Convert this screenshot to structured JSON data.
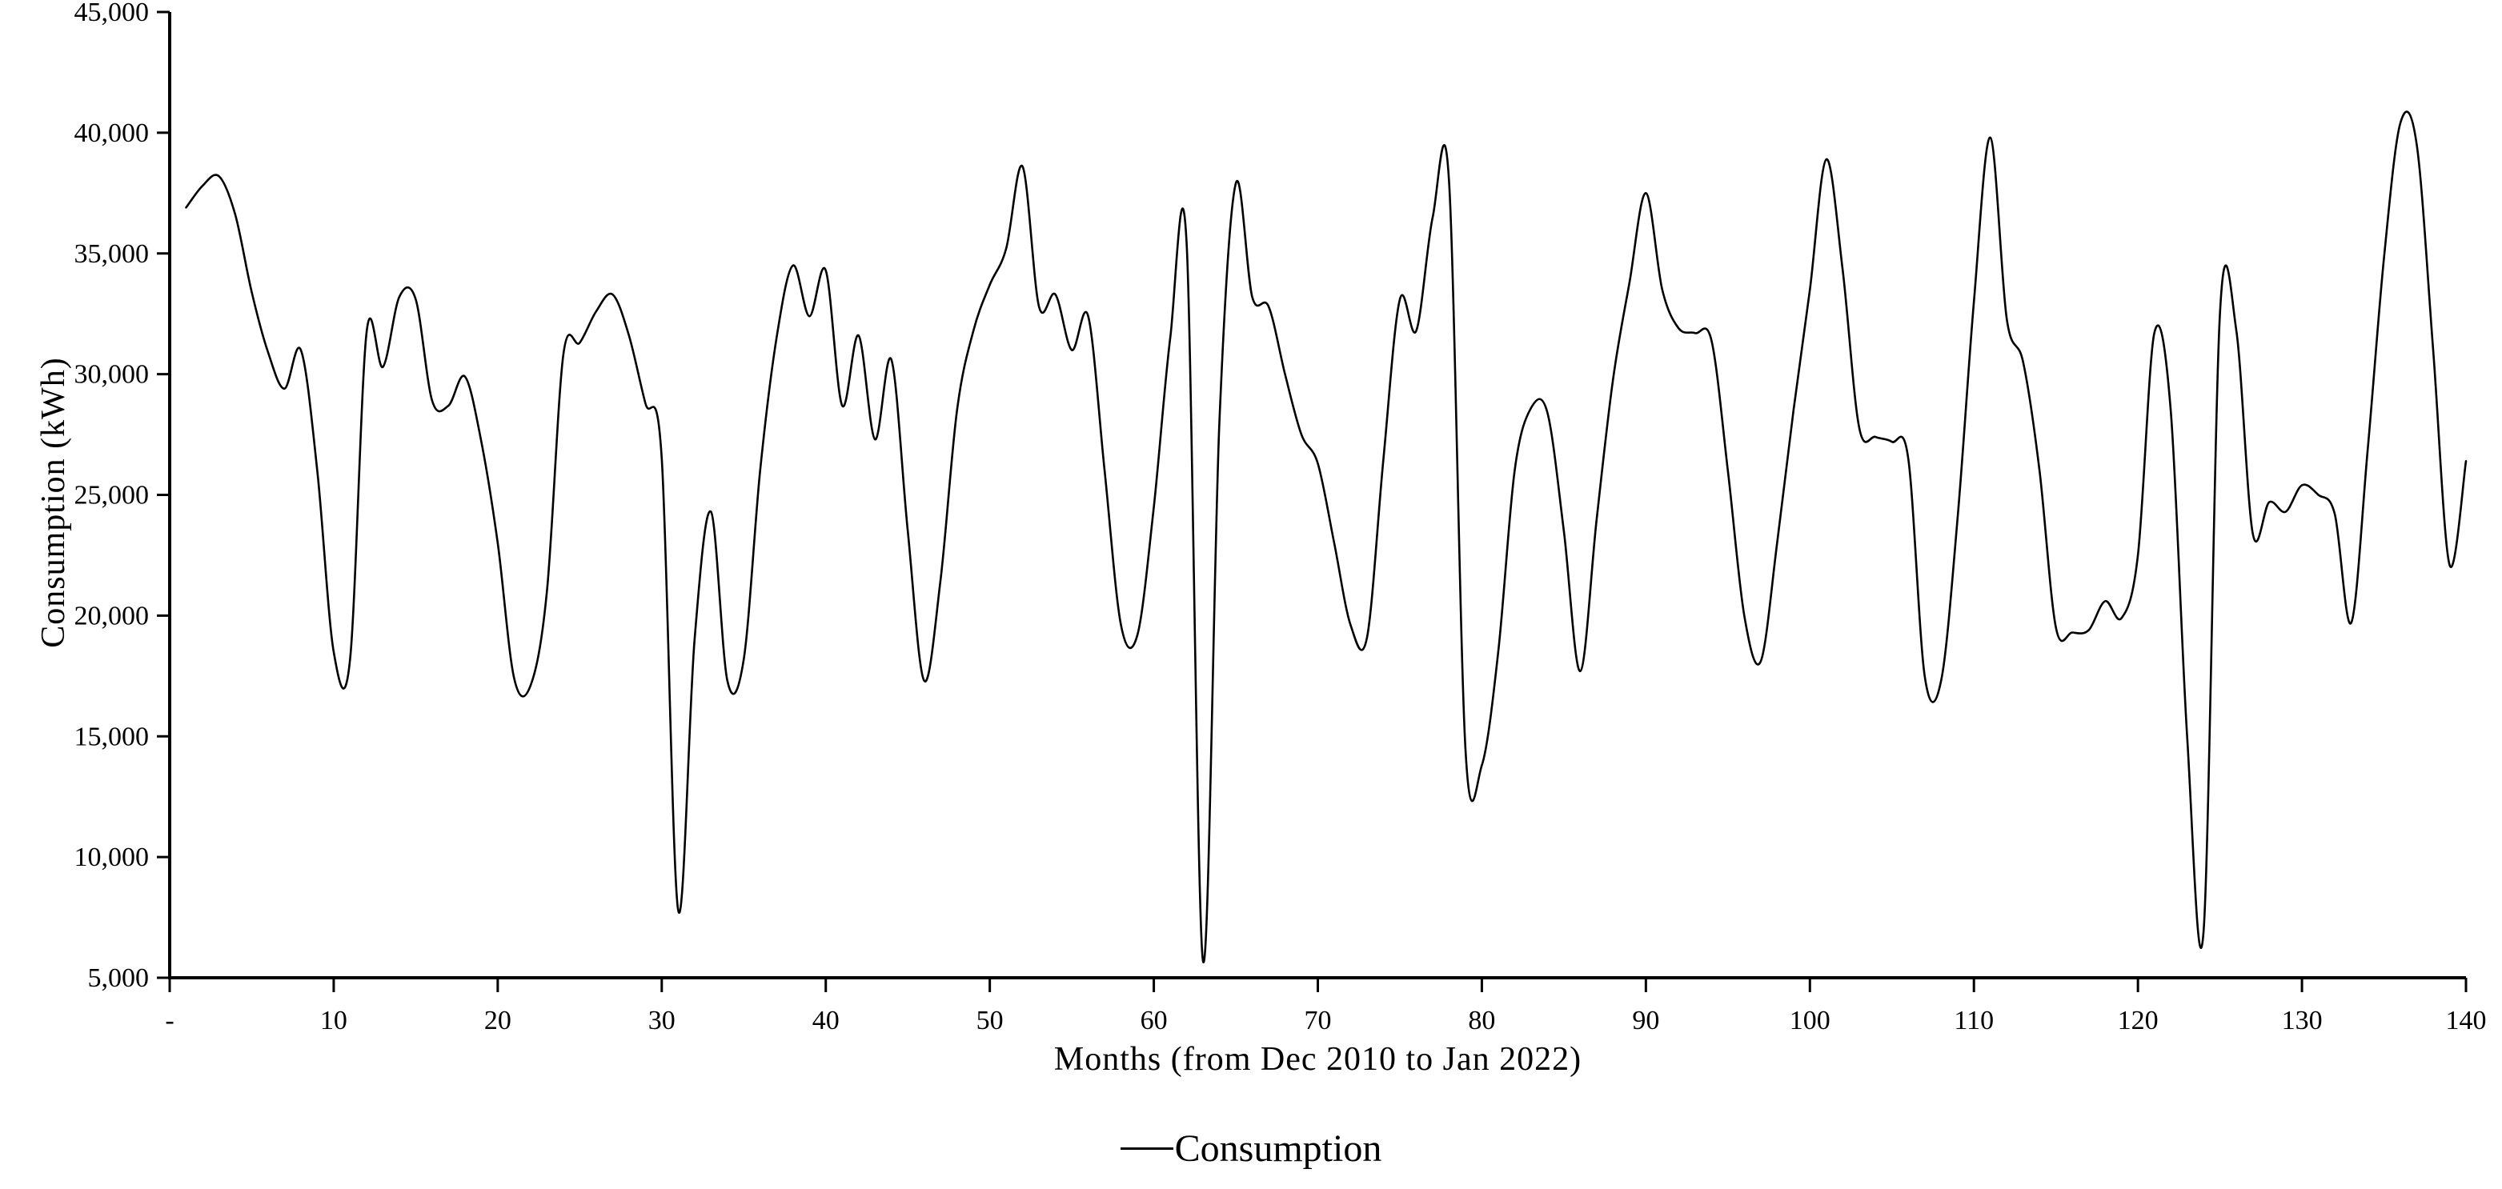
{
  "chart_data": {
    "type": "line",
    "title": "",
    "xlabel": "Months (from Dec 2010 to Jan 2022)",
    "ylabel": "Consumption (kWh)",
    "grid": "off",
    "legend_position": "bottom-center",
    "ylim": [
      5000,
      45000
    ],
    "ytick_step": 5000,
    "ytick_labels": [
      "5,000",
      "10,000",
      "15,000",
      "20,000",
      "25,000",
      "30,000",
      "35,000",
      "40,000",
      "45,000"
    ],
    "xlim": [
      0,
      140
    ],
    "xticks": [
      0,
      10,
      20,
      30,
      40,
      50,
      60,
      70,
      80,
      90,
      100,
      110,
      120,
      130,
      140
    ],
    "xtick_labels": [
      "-",
      "10",
      "20",
      "30",
      "40",
      "50",
      "60",
      "70",
      "80",
      "90",
      "100",
      "110",
      "120",
      "130",
      "140"
    ],
    "x_start_month": 1,
    "line_color": "#000000",
    "axis_color": "#000000",
    "series": [
      {
        "name": "Consumption",
        "color": "#000000",
        "values": [
          36900,
          37800,
          38200,
          36600,
          33400,
          30900,
          29400,
          31000,
          26000,
          18500,
          18200,
          31700,
          30300,
          33200,
          33100,
          28900,
          28700,
          29900,
          27200,
          23000,
          17400,
          17100,
          21000,
          30800,
          31300,
          32600,
          33300,
          31600,
          28800,
          26500,
          7800,
          19000,
          24300,
          17300,
          18200,
          26000,
          31500,
          34500,
          32400,
          34300,
          28700,
          31600,
          27300,
          30600,
          23500,
          17300,
          21500,
          28500,
          31800,
          33700,
          35200,
          38600,
          32800,
          33300,
          31000,
          32400,
          26000,
          19600,
          19200,
          24500,
          31500,
          35400,
          5700,
          28000,
          37900,
          33200,
          32800,
          30000,
          27500,
          26300,
          23000,
          19600,
          19100,
          26500,
          33100,
          31800,
          36500,
          38000,
          14500,
          13800,
          18500,
          26000,
          28600,
          28400,
          23500,
          17700,
          24000,
          29800,
          33800,
          37500,
          33500,
          31900,
          31700,
          31400,
          26000,
          20000,
          18100,
          23000,
          28500,
          33500,
          38900,
          34300,
          27800,
          27400,
          27200,
          26500,
          17500,
          17300,
          24000,
          33000,
          39800,
          32300,
          30500,
          26000,
          19500,
          19300,
          19400,
          20600,
          19900,
          22500,
          31700,
          28500,
          15000,
          6900,
          32500,
          31800,
          23400,
          24700,
          24300,
          25400,
          25000,
          24200,
          19700,
          26800,
          34800,
          40400,
          39500,
          31000,
          22100,
          26400
        ]
      }
    ],
    "legend": [
      "Consumption"
    ]
  },
  "labels": {
    "y_axis_title": "Consumption (kWh)",
    "x_axis_title": "Months (from Dec 2010 to Jan 2022)",
    "legend_consumption": "Consumption"
  }
}
